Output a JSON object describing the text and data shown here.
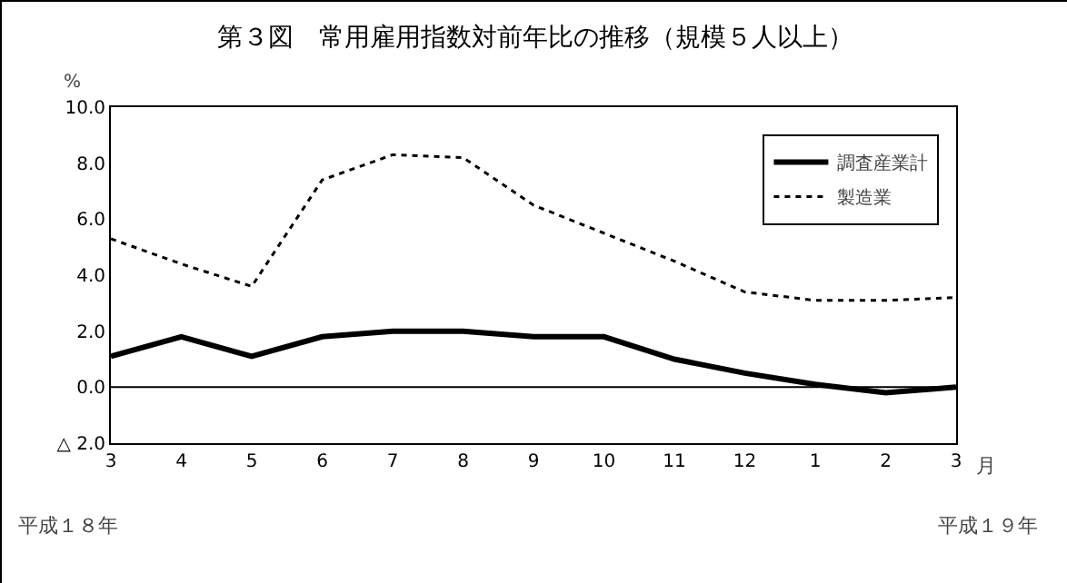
{
  "chart_data": {
    "type": "line",
    "title": "第３図　常用雇用指数対前年比の推移（規模５人以上）",
    "ylabel": "%",
    "xlabel": "月",
    "categories": [
      "3",
      "4",
      "5",
      "6",
      "7",
      "8",
      "9",
      "10",
      "11",
      "12",
      "1",
      "2",
      "3"
    ],
    "series": [
      {
        "name": "調査産業計",
        "color": "#000000",
        "line_style": "solid",
        "values": [
          1.1,
          1.8,
          1.1,
          1.8,
          2.0,
          2.0,
          1.8,
          1.8,
          1.0,
          0.5,
          0.1,
          -0.2,
          0.0
        ]
      },
      {
        "name": "製造業",
        "color": "#000000",
        "line_style": "dotted",
        "values": [
          5.3,
          4.4,
          3.6,
          7.4,
          8.3,
          8.2,
          6.5,
          5.5,
          4.5,
          3.4,
          3.1,
          3.1,
          3.2
        ]
      }
    ],
    "ylim": [
      -2,
      10
    ],
    "yticks": [
      {
        "value": -2,
        "label": "△ 2.0"
      },
      {
        "value": 0,
        "label": "0.0"
      },
      {
        "value": 2,
        "label": "2.0"
      },
      {
        "value": 4,
        "label": "4.0"
      },
      {
        "value": 6,
        "label": "6.0"
      },
      {
        "value": 8,
        "label": "8.0"
      },
      {
        "value": 10,
        "label": "10.0"
      }
    ],
    "ref_lines": [
      {
        "axis": "y",
        "value": 0,
        "color": "#000000"
      }
    ],
    "annotations": [
      "平成１８年",
      "平成１９年"
    ],
    "grid": false,
    "legend": "top right",
    "marker": "none"
  }
}
